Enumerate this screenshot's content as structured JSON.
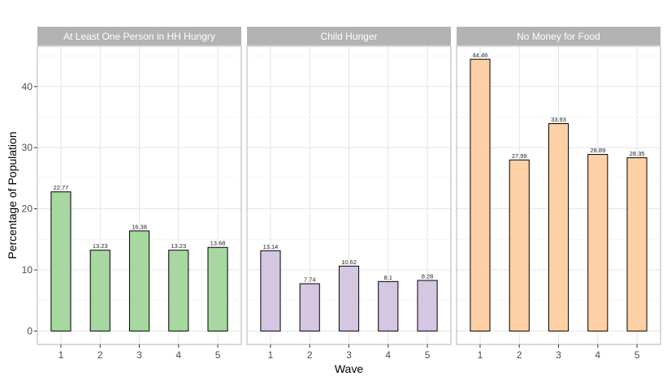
{
  "chart_data": {
    "type": "bar",
    "xlabel": "Wave",
    "ylabel": "Percentage of Population",
    "ylim": [
      -2.2,
      46.6
    ],
    "yticks": [
      0,
      10,
      20,
      30,
      40
    ],
    "categories": [
      "1",
      "2",
      "3",
      "4",
      "5"
    ],
    "grid": true,
    "panels": [
      {
        "title": "At Least One Person in HH Hungry",
        "color": "#a6d8a0",
        "values": [
          22.77,
          13.23,
          16.38,
          13.23,
          13.68
        ],
        "labels": [
          "22.77",
          "13.23",
          "16.38",
          "13.23",
          "13.68"
        ]
      },
      {
        "title": "Child Hunger",
        "color": "#d5c6e2",
        "values": [
          13.14,
          7.74,
          10.62,
          8.1,
          8.28
        ],
        "labels": [
          "13.14",
          "7.74",
          "10.62",
          "8.1",
          "8.28"
        ]
      },
      {
        "title": "No Money for Food",
        "color": "#fed0a6",
        "values": [
          44.46,
          27.99,
          33.93,
          28.89,
          28.35
        ],
        "labels": [
          "44.46",
          "27.99",
          "33.93",
          "28.89",
          "28.35"
        ]
      }
    ]
  }
}
